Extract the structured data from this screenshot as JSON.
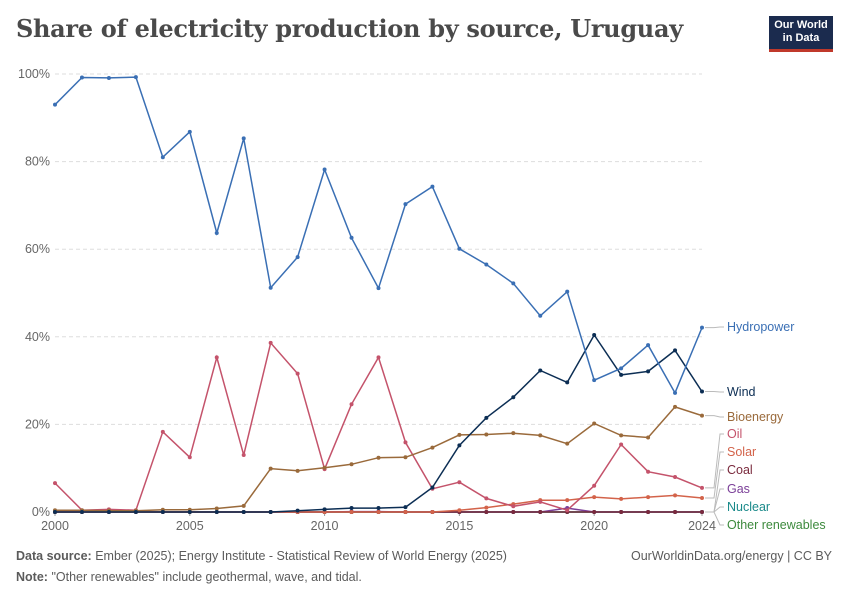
{
  "header": {
    "title": "Share of electricity production by source, Uruguay",
    "logo_line1": "Our World",
    "logo_line2": "in Data"
  },
  "footer": {
    "source_label": "Data source:",
    "source_text": "Ember (2025); Energy Institute - Statistical Review of World Energy (2025)",
    "note_label": "Note:",
    "note_text": "\"Other renewables\" include geothermal, wave, and tidal.",
    "credit": "OurWorldinData.org/energy | CC BY"
  },
  "chart_data": {
    "type": "line",
    "title": "Share of electricity production by source, Uruguay",
    "x": [
      2000,
      2001,
      2002,
      2003,
      2004,
      2005,
      2006,
      2007,
      2008,
      2009,
      2010,
      2011,
      2012,
      2013,
      2014,
      2015,
      2016,
      2017,
      2018,
      2019,
      2020,
      2021,
      2022,
      2023,
      2024
    ],
    "xlim": [
      2000,
      2024
    ],
    "xticks": [
      "2000",
      "2005",
      "2010",
      "2015",
      "2020",
      "2024"
    ],
    "xtick_values": [
      2000,
      2005,
      2010,
      2015,
      2020,
      2024
    ],
    "ylim": [
      0,
      100
    ],
    "yticks": [
      "0%",
      "20%",
      "40%",
      "60%",
      "80%",
      "100%"
    ],
    "ytick_values": [
      0,
      20,
      40,
      60,
      80,
      100
    ],
    "grid": true,
    "legend": "right, labels at line ends",
    "series": [
      {
        "name": "Hydropower",
        "color": "#3a6fb4",
        "values": [
          93,
          99.2,
          99.1,
          99.3,
          81,
          86.8,
          63.7,
          85.3,
          51.2,
          58.2,
          78.2,
          62.6,
          51.1,
          70.3,
          74.3,
          60.1,
          56.5,
          52.2,
          44.8,
          50.3,
          30.1,
          32.8,
          38.1,
          27.2,
          42.1
        ]
      },
      {
        "name": "Wind",
        "color": "#0c2e54",
        "values": [
          0,
          0,
          0,
          0,
          0,
          0,
          0,
          0,
          0,
          0.3,
          0.6,
          0.9,
          0.9,
          1.1,
          5.6,
          15.2,
          21.5,
          26.2,
          32.3,
          29.6,
          40.4,
          31.3,
          32.1,
          36.9,
          27.5
        ]
      },
      {
        "name": "Bioenergy",
        "color": "#9a6a3b",
        "values": [
          0.4,
          0.4,
          0.3,
          0.3,
          0.5,
          0.5,
          0.8,
          1.4,
          9.9,
          9.4,
          10.1,
          10.9,
          12.4,
          12.5,
          14.7,
          17.6,
          17.7,
          18,
          17.5,
          15.6,
          20.2,
          17.5,
          17,
          24,
          22
        ]
      },
      {
        "name": "Oil",
        "color": "#c4536b",
        "values": [
          6.6,
          0.4,
          0.6,
          0.4,
          18.3,
          12.5,
          35.3,
          13,
          38.6,
          31.6,
          9.8,
          24.6,
          35.3,
          15.9,
          5.3,
          6.8,
          3.1,
          1.3,
          2.3,
          0.4,
          6,
          15.4,
          9.2,
          8,
          5.5
        ]
      },
      {
        "name": "Solar",
        "color": "#d3634a",
        "values": [
          0,
          0,
          0,
          0,
          0,
          0,
          0,
          0,
          0,
          0,
          0,
          0,
          0,
          0,
          0,
          0.4,
          1.0,
          1.8,
          2.7,
          2.7,
          3.4,
          3.0,
          3.4,
          3.8,
          3.2
        ]
      },
      {
        "name": "Coal",
        "color": "#7a2a3d",
        "values": [
          0,
          0,
          0,
          0,
          0,
          0,
          0,
          0,
          0,
          0,
          0,
          0,
          0,
          0,
          0,
          0,
          0,
          0,
          0,
          0,
          0,
          0,
          0,
          0,
          0
        ]
      },
      {
        "name": "Gas",
        "color": "#7b3f98",
        "values": [
          0,
          0,
          0,
          0,
          0,
          0,
          0,
          0,
          0,
          0,
          0,
          0.1,
          0.1,
          0,
          0,
          0,
          0,
          0,
          0,
          0.9,
          0,
          0,
          0,
          0,
          0
        ]
      },
      {
        "name": "Nuclear",
        "color": "#1a8a8a",
        "values": [
          0,
          0,
          0,
          0,
          0,
          0,
          0,
          0,
          0,
          0,
          0,
          0,
          0,
          0,
          0,
          0,
          0,
          0,
          0,
          0,
          0,
          0,
          0,
          0,
          0
        ]
      },
      {
        "name": "Other renewables",
        "color": "#3d8a3d",
        "values": [
          0,
          0,
          0,
          0,
          0,
          0,
          0,
          0,
          0,
          0,
          0,
          0,
          0,
          0,
          0,
          0,
          0,
          0,
          0,
          0,
          0,
          0,
          0,
          0,
          0
        ]
      }
    ]
  }
}
